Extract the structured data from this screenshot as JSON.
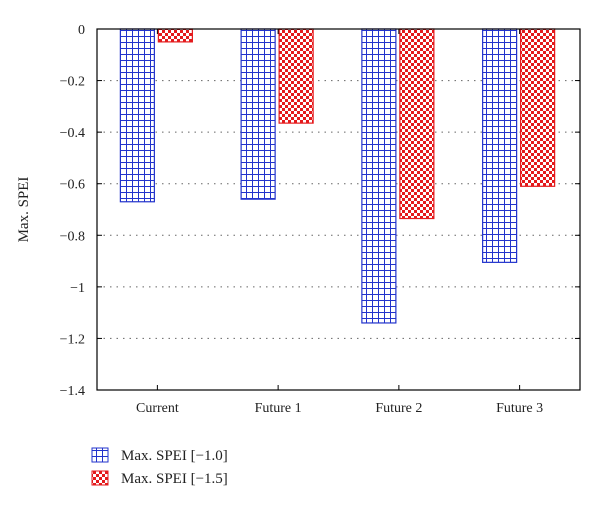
{
  "chart_data": {
    "type": "bar",
    "title": "",
    "xlabel": "",
    "ylabel": "Max. SPEI",
    "categories": [
      "Current",
      "Future 1",
      "Future 2",
      "Future 3"
    ],
    "series": [
      {
        "name": "Max. SPEI [−1.0]",
        "values": [
          -0.67,
          -0.66,
          -1.14,
          -0.905
        ],
        "color": "#2233cc",
        "pattern": "grid"
      },
      {
        "name": "Max. SPEI [−1.5]",
        "values": [
          -0.05,
          -0.365,
          -0.735,
          -0.61
        ],
        "color": "#e41a1c",
        "pattern": "checker"
      }
    ],
    "ylim": [
      -1.4,
      0
    ],
    "yticks": [
      0,
      -0.2,
      -0.4,
      -0.6,
      -0.8,
      -1,
      -1.2,
      -1.4
    ],
    "ytick_labels": [
      "0",
      "−0.2",
      "−0.4",
      "−0.6",
      "−0.8",
      "−1",
      "−1.2",
      "−1.4"
    ],
    "grid": "horizontal-dotted",
    "legend_position": "bottom-left"
  }
}
